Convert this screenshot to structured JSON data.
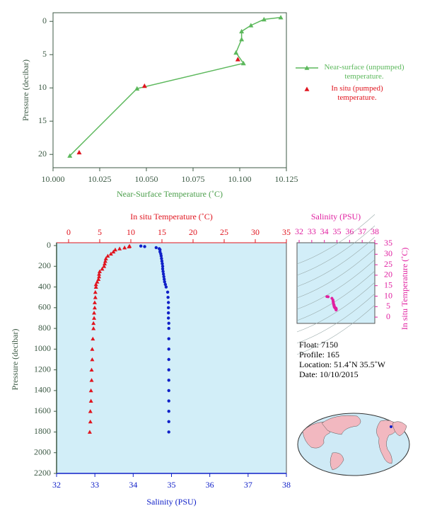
{
  "chart_data": [
    {
      "type": "line",
      "xlabel": "Near-Surface Temperature (˚C)",
      "ylabel": "Pressure (decibar)",
      "xlim": [
        10.0,
        10.125
      ],
      "ylim": [
        -1.3,
        22
      ],
      "y_inverted": true,
      "xticks": [
        {
          "value": 10.0,
          "label": "10.000"
        },
        10.025,
        {
          "value": 10.05,
          "label": "10.050"
        },
        10.075,
        {
          "value": 10.1,
          "label": "10.100"
        },
        {
          "value": 10.125,
          "label": "10.125"
        }
      ],
      "yticks": [
        0,
        5,
        10,
        15,
        20
      ],
      "legend": "right",
      "series": [
        {
          "name": "Near-surface (unpumped) temperature.",
          "color": "#5cb85c",
          "line": true,
          "x": [
            10.122,
            10.113,
            10.106,
            10.101,
            10.101,
            10.098,
            10.102,
            10.045,
            10.009
          ],
          "values": [
            -0.6,
            -0.3,
            0.6,
            1.5,
            2.7,
            4.7,
            6.3,
            10.1,
            20.2
          ]
        },
        {
          "name": "In situ (pumped) temperature.",
          "color": "#e0141e",
          "line": false,
          "x": [
            10.099,
            10.049,
            10.014
          ],
          "values": [
            5.7,
            9.7,
            19.7
          ]
        }
      ]
    },
    {
      "type": "profile",
      "ylabel": "Pressure (decibar)",
      "xlabel": "Salinity (PSU)",
      "x2label": "In situ Temperature (˚C)",
      "ylim": [
        0,
        2200
      ],
      "y_inverted": true,
      "yticks": [
        0,
        200,
        400,
        600,
        800,
        1000,
        1200,
        1400,
        1600,
        1800,
        2000,
        2200
      ],
      "xlim": [
        32,
        38
      ],
      "xticks": [
        32,
        33,
        34,
        35,
        36,
        37,
        38
      ],
      "x2lim": [
        -1.93,
        35
      ],
      "x2ticks": [
        0,
        5,
        10,
        15,
        20,
        25,
        30,
        35
      ],
      "pressure": [
        5,
        10,
        20,
        30,
        40,
        60,
        80,
        100,
        125,
        150,
        175,
        200,
        225,
        250,
        275,
        300,
        325,
        350,
        375,
        400,
        450,
        500,
        550,
        600,
        650,
        700,
        750,
        800,
        900,
        1000,
        1100,
        1200,
        1300,
        1400,
        1500,
        1600,
        1700,
        1800
      ],
      "series": [
        {
          "axis": "x2",
          "color": "#e0141e",
          "marker": "triangle",
          "values": [
            9.8,
            9.7,
            9.0,
            8.2,
            7.5,
            7.2,
            6.8,
            6.3,
            6.0,
            5.9,
            5.8,
            5.7,
            5.4,
            5.0,
            4.9,
            4.9,
            4.8,
            4.6,
            4.4,
            4.4,
            4.3,
            4.3,
            4.2,
            4.2,
            4.1,
            4.1,
            4.0,
            4.0,
            3.9,
            3.8,
            3.8,
            3.7,
            3.7,
            3.6,
            3.6,
            3.5,
            3.5,
            3.4
          ]
        },
        {
          "axis": "x",
          "color": "#1020c8",
          "marker": "dot",
          "values": [
            34.2,
            34.3,
            34.6,
            34.68,
            34.7,
            34.7,
            34.72,
            34.73,
            34.74,
            34.75,
            34.76,
            34.77,
            34.77,
            34.78,
            34.79,
            34.8,
            34.81,
            34.82,
            34.84,
            34.86,
            34.9,
            34.91,
            34.92,
            34.92,
            34.92,
            34.92,
            34.93,
            34.93,
            34.93,
            34.93,
            34.93,
            34.93,
            34.93,
            34.93,
            34.93,
            34.93,
            34.93,
            34.93
          ]
        }
      ]
    },
    {
      "type": "ts",
      "xlabel": "Salinity (PSU)",
      "ylabel": "In situ Temperature (˚C)",
      "color": "#e020a0",
      "xlim": [
        31.83,
        38
      ],
      "xticks": [
        32,
        33,
        34,
        35,
        36,
        37,
        38
      ],
      "ylim": [
        -3,
        35.5
      ],
      "yticks": [
        0,
        5,
        10,
        15,
        20,
        25,
        30,
        35
      ]
    }
  ],
  "info": [
    "Float:  7150",
    "Profile:  165",
    "Location:  51.4˚N  35.5˚W",
    "Date:  10/10/2015"
  ]
}
